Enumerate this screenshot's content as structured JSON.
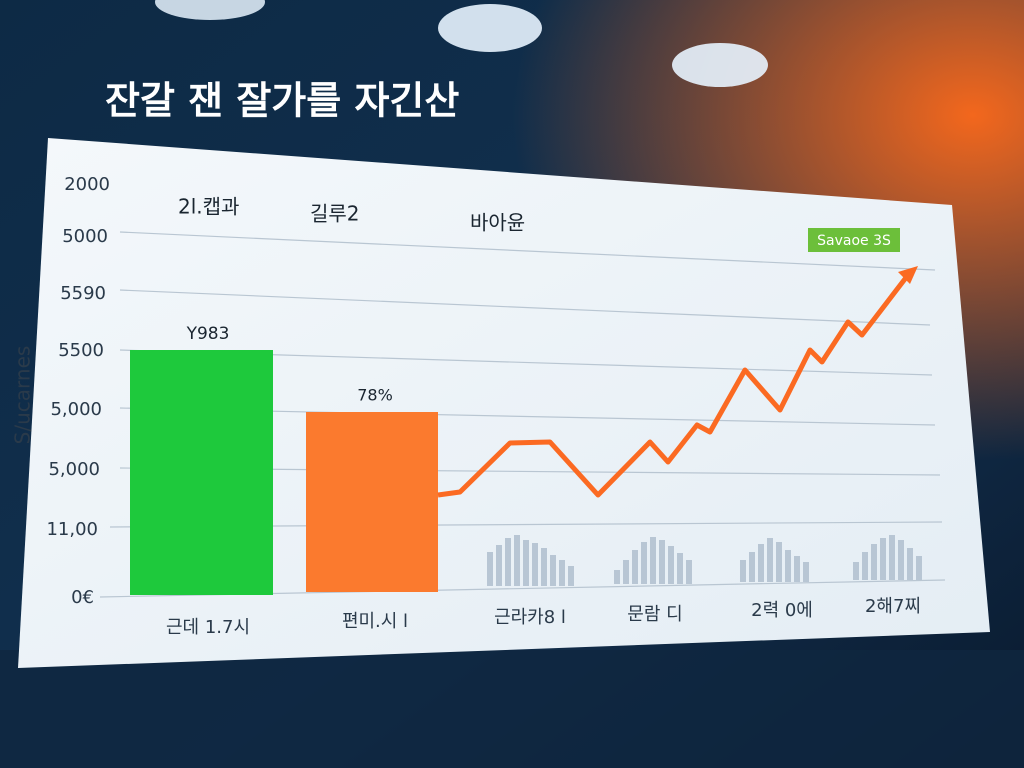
{
  "title": "잔갈 잰 잘가를 자긴산",
  "chart": {
    "y_axis_label": "S/ucarnes",
    "tick_labels": [
      "2000",
      "5000",
      "5590",
      "5500",
      "5,000",
      "5,000",
      "11,00",
      "0€"
    ],
    "header_labels": [
      "2l.캡과",
      "길루2",
      "바아윤"
    ],
    "badge": "Savaoe 3S",
    "bar_labels": [
      "Y983",
      "78%"
    ],
    "categories": [
      "근데 1.7시",
      "편미.시 l",
      "근라카8 l",
      "문람 디",
      "2력 0에",
      "2해7찌"
    ]
  }
}
